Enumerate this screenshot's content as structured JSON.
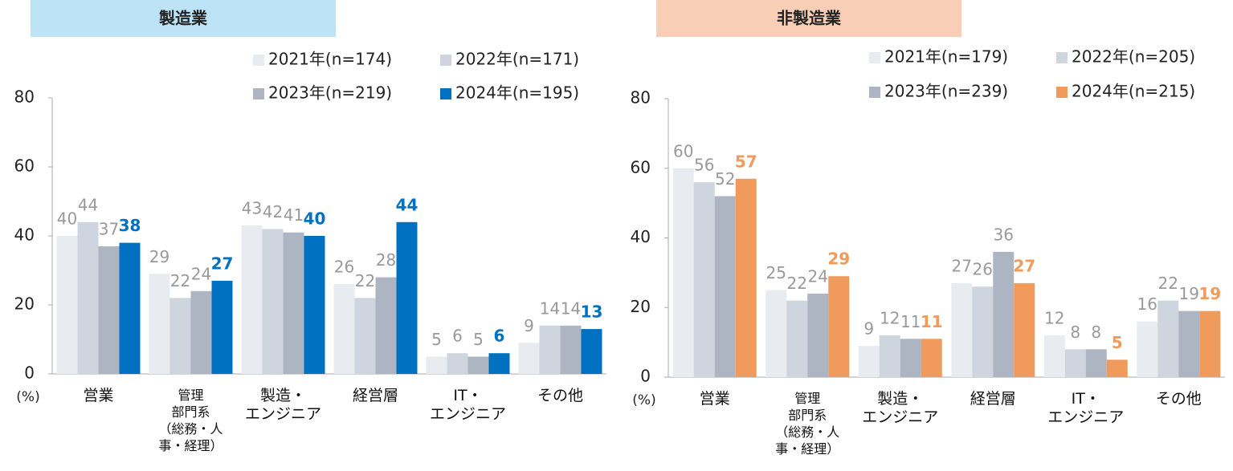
{
  "chart_data": [
    {
      "type": "bar",
      "title": "製造業",
      "y_unit": "(%)",
      "categories": [
        "営業",
        "管理\n部門系\n（総務・人\n事・経理）",
        "製造・\nエンジニア",
        "経営層",
        "IT・\nエンジニア",
        "その他"
      ],
      "series": [
        {
          "name": "2021年(n=174)",
          "color": "#e8ebef",
          "values": [
            40,
            29,
            43,
            26,
            5,
            9
          ]
        },
        {
          "name": "2022年(n=171)",
          "color": "#cfd5de",
          "values": [
            44,
            22,
            42,
            22,
            6,
            14
          ]
        },
        {
          "name": "2023年(n=219)",
          "color": "#adb5c2",
          "values": [
            37,
            24,
            41,
            28,
            5,
            14
          ]
        },
        {
          "name": "2024年(n=195)",
          "color": "#0070c0",
          "values": [
            38,
            27,
            40,
            44,
            6,
            13
          ]
        }
      ],
      "ylim": [
        0,
        80
      ],
      "yticks": [
        0,
        20,
        40,
        60,
        80
      ],
      "header_color": "#bde3f6"
    },
    {
      "type": "bar",
      "title": "非製造業",
      "y_unit": "(%)",
      "categories": [
        "営業",
        "管理\n部門系\n（総務・人\n事・経理）",
        "製造・\nエンジニア",
        "経営層",
        "IT・\nエンジニア",
        "その他"
      ],
      "series": [
        {
          "name": "2021年(n=179)",
          "color": "#e8ebef",
          "values": [
            60,
            25,
            9,
            27,
            12,
            16
          ]
        },
        {
          "name": "2022年(n=205)",
          "color": "#cfd5de",
          "values": [
            56,
            22,
            12,
            26,
            8,
            22
          ]
        },
        {
          "name": "2023年(n=239)",
          "color": "#adb5c2",
          "values": [
            52,
            24,
            11,
            36,
            8,
            19
          ]
        },
        {
          "name": "2024年(n=215)",
          "color": "#f09a5c",
          "values": [
            57,
            29,
            11,
            27,
            5,
            19
          ]
        }
      ],
      "ylim": [
        0,
        80
      ],
      "yticks": [
        0,
        20,
        40,
        60,
        80
      ],
      "header_color": "#f8cfb6"
    }
  ]
}
